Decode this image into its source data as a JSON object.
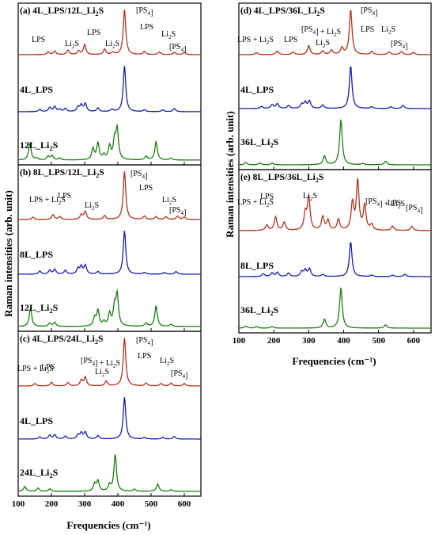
{
  "y_axis_label": "Raman intensities (arb. unit)",
  "x_axis_label": "Frequencies (cm⁻¹)",
  "colors": {
    "combined": "#b5321e",
    "lps": "#1a1ab4",
    "li2s": "#1b7d12"
  },
  "chart_data": [
    {
      "type": "line",
      "panel": "(a)",
      "title": "4L_LPS/12L_Li2S",
      "xlim": [
        100,
        650
      ],
      "xticks": [],
      "traces": [
        {
          "name": "4L_LPS/12L_Li2S",
          "color": "#b5321e",
          "peaks": [
            [
              190,
              0.06
            ],
            [
              210,
              0.08
            ],
            [
              250,
              0.1
            ],
            [
              282,
              0.08
            ],
            [
              300,
              0.22
            ],
            [
              360,
              0.12
            ],
            [
              385,
              0.05
            ],
            [
              420,
              1.0
            ],
            [
              480,
              0.07
            ],
            [
              525,
              0.06
            ],
            [
              570,
              0.05
            ],
            [
              600,
              0.05
            ]
          ]
        },
        {
          "name": "4L_LPS",
          "color": "#1a1ab4",
          "peaks": [
            [
              165,
              0.05
            ],
            [
              195,
              0.09
            ],
            [
              210,
              0.11
            ],
            [
              225,
              0.05
            ],
            [
              242,
              0.07
            ],
            [
              280,
              0.1
            ],
            [
              290,
              0.14
            ],
            [
              302,
              0.17
            ],
            [
              340,
              0.08
            ],
            [
              382,
              0.05
            ],
            [
              420,
              1.0
            ],
            [
              480,
              0.04
            ],
            [
              535,
              0.04
            ],
            [
              570,
              0.07
            ]
          ]
        },
        {
          "name": "12L_Li2S",
          "color": "#1b7d12",
          "peaks": [
            [
              135,
              0.45
            ],
            [
              155,
              0.05
            ],
            [
              190,
              0.1
            ],
            [
              202,
              0.12
            ],
            [
              225,
              0.05
            ],
            [
              325,
              0.3
            ],
            [
              340,
              0.45
            ],
            [
              358,
              0.12
            ],
            [
              375,
              0.35
            ],
            [
              390,
              0.5
            ],
            [
              398,
              0.8
            ],
            [
              485,
              0.1
            ],
            [
              515,
              0.5
            ],
            [
              560,
              0.05
            ]
          ]
        }
      ],
      "annotations": [
        "LPS",
        "Li2S",
        "LPS",
        "Li2S",
        "LPS",
        "Li2S",
        "[PS4]",
        "[PS4]"
      ]
    },
    {
      "type": "line",
      "panel": "(b)",
      "title": "8L_LPS/12L_Li2S",
      "xlim": [
        100,
        650
      ],
      "xticks": [],
      "traces": [
        {
          "name": "8L_LPS/12L_Li2S",
          "color": "#b5321e",
          "peaks": [
            [
              145,
              0.05
            ],
            [
              205,
              0.1
            ],
            [
              225,
              0.06
            ],
            [
              290,
              0.1
            ],
            [
              302,
              0.16
            ],
            [
              360,
              0.08
            ],
            [
              420,
              1.0
            ],
            [
              480,
              0.07
            ],
            [
              515,
              0.06
            ],
            [
              545,
              0.06
            ],
            [
              580,
              0.07
            ],
            [
              600,
              0.05
            ]
          ]
        },
        {
          "name": "8L_LPS",
          "color": "#1a1ab4",
          "peaks": [
            [
              165,
              0.07
            ],
            [
              195,
              0.09
            ],
            [
              210,
              0.11
            ],
            [
              242,
              0.09
            ],
            [
              280,
              0.13
            ],
            [
              290,
              0.17
            ],
            [
              302,
              0.2
            ],
            [
              340,
              0.06
            ],
            [
              420,
              1.0
            ],
            [
              480,
              0.04
            ],
            [
              540,
              0.04
            ],
            [
              575,
              0.06
            ]
          ]
        },
        {
          "name": "12L_Li2S",
          "color": "#1b7d12",
          "peaks": [
            [
              137,
              0.45
            ],
            [
              195,
              0.08
            ],
            [
              210,
              0.1
            ],
            [
              330,
              0.2
            ],
            [
              340,
              0.38
            ],
            [
              358,
              0.1
            ],
            [
              375,
              0.3
            ],
            [
              390,
              0.45
            ],
            [
              398,
              0.75
            ],
            [
              485,
              0.08
            ],
            [
              515,
              0.5
            ],
            [
              560,
              0.05
            ]
          ]
        }
      ],
      "annotations": [
        "LPS + Li2S",
        "LPS",
        "Li2S",
        "LPS",
        "Li2S",
        "[PS4]",
        "[PS4]"
      ]
    },
    {
      "type": "line",
      "panel": "(c)",
      "title": "4L_LPS/24L_Li2S",
      "xlim": [
        100,
        650
      ],
      "xticks": [
        100,
        200,
        300,
        400,
        500,
        600
      ],
      "traces": [
        {
          "name": "4L_LPS/24L_Li2S",
          "color": "#b5321e",
          "peaks": [
            [
              150,
              0.05
            ],
            [
              200,
              0.08
            ],
            [
              250,
              0.07
            ],
            [
              290,
              0.12
            ],
            [
              302,
              0.18
            ],
            [
              365,
              0.1
            ],
            [
              420,
              1.0
            ],
            [
              485,
              0.06
            ],
            [
              530,
              0.05
            ],
            [
              560,
              0.06
            ],
            [
              600,
              0.05
            ]
          ]
        },
        {
          "name": "4L_LPS",
          "color": "#1a1ab4",
          "peaks": [
            [
              165,
              0.05
            ],
            [
              195,
              0.09
            ],
            [
              210,
              0.1
            ],
            [
              242,
              0.07
            ],
            [
              280,
              0.1
            ],
            [
              290,
              0.14
            ],
            [
              302,
              0.16
            ],
            [
              340,
              0.08
            ],
            [
              420,
              1.0
            ],
            [
              480,
              0.04
            ],
            [
              535,
              0.04
            ],
            [
              570,
              0.06
            ]
          ]
        },
        {
          "name": "24L_Li2S",
          "color": "#1b7d12",
          "peaks": [
            [
              120,
              0.12
            ],
            [
              160,
              0.08
            ],
            [
              195,
              0.06
            ],
            [
              330,
              0.18
            ],
            [
              340,
              0.25
            ],
            [
              375,
              0.15
            ],
            [
              392,
              0.9
            ],
            [
              450,
              0.05
            ],
            [
              520,
              0.18
            ],
            [
              560,
              0.04
            ]
          ]
        }
      ],
      "annotations": [
        "LPS + Li2S",
        "LPS",
        "[PS4] + Li2S",
        "Li2S",
        "LPS",
        "Li2S",
        "[PS4]",
        "[PS4]"
      ]
    },
    {
      "type": "line",
      "panel": "(d)",
      "title": "4L_LPS/36L_Li2S",
      "xlim": [
        100,
        650
      ],
      "xticks": [],
      "traces": [
        {
          "name": "4L_LPS/36L_Li2S",
          "color": "#b5321e",
          "peaks": [
            [
              150,
              0.04
            ],
            [
              210,
              0.08
            ],
            [
              255,
              0.06
            ],
            [
              300,
              0.2
            ],
            [
              340,
              0.08
            ],
            [
              365,
              0.1
            ],
            [
              395,
              0.15
            ],
            [
              420,
              1.0
            ],
            [
              480,
              0.07
            ],
            [
              530,
              0.06
            ],
            [
              565,
              0.07
            ],
            [
              600,
              0.05
            ]
          ]
        },
        {
          "name": "4L_LPS",
          "color": "#1a1ab4",
          "peaks": [
            [
              165,
              0.05
            ],
            [
              195,
              0.09
            ],
            [
              210,
              0.11
            ],
            [
              242,
              0.07
            ],
            [
              280,
              0.1
            ],
            [
              290,
              0.14
            ],
            [
              302,
              0.17
            ],
            [
              340,
              0.08
            ],
            [
              420,
              1.0
            ],
            [
              480,
              0.04
            ],
            [
              535,
              0.04
            ],
            [
              570,
              0.07
            ]
          ]
        },
        {
          "name": "36L_Li2S",
          "color": "#1b7d12",
          "peaks": [
            [
              120,
              0.05
            ],
            [
              160,
              0.04
            ],
            [
              195,
              0.04
            ],
            [
              345,
              0.2
            ],
            [
              392,
              1.0
            ],
            [
              455,
              0.03
            ],
            [
              520,
              0.08
            ]
          ]
        }
      ],
      "annotations": [
        "LPS + Li2S",
        "LPS",
        "[PS4] + Li2S",
        "Li2S",
        "LPS",
        "Li2S",
        "[PS4]",
        "[PS4]"
      ]
    },
    {
      "type": "line",
      "panel": "(e)",
      "title": "8L_LPS/36L_Li2S",
      "xlim": [
        100,
        650
      ],
      "xticks": [
        100,
        200,
        300,
        400,
        500,
        600
      ],
      "traces": [
        {
          "name": "8L_LPS/36L_Li2S",
          "color": "#b5321e",
          "peaks": [
            [
              180,
              0.1
            ],
            [
              205,
              0.25
            ],
            [
              230,
              0.15
            ],
            [
              290,
              0.3
            ],
            [
              300,
              0.6
            ],
            [
              340,
              0.25
            ],
            [
              355,
              0.18
            ],
            [
              385,
              0.2
            ],
            [
              425,
              0.5
            ],
            [
              440,
              0.9
            ],
            [
              460,
              0.45
            ],
            [
              480,
              0.1
            ],
            [
              540,
              0.08
            ],
            [
              595,
              0.08
            ]
          ]
        },
        {
          "name": "8L_LPS",
          "color": "#1a1ab4",
          "peaks": [
            [
              170,
              0.08
            ],
            [
              195,
              0.1
            ],
            [
              210,
              0.12
            ],
            [
              242,
              0.1
            ],
            [
              280,
              0.14
            ],
            [
              290,
              0.18
            ],
            [
              302,
              0.22
            ],
            [
              340,
              0.06
            ],
            [
              420,
              1.0
            ],
            [
              480,
              0.04
            ],
            [
              540,
              0.04
            ],
            [
              575,
              0.07
            ]
          ]
        },
        {
          "name": "36L_Li2S",
          "color": "#1b7d12",
          "peaks": [
            [
              120,
              0.05
            ],
            [
              150,
              0.04
            ],
            [
              195,
              0.04
            ],
            [
              345,
              0.22
            ],
            [
              392,
              1.0
            ],
            [
              520,
              0.08
            ]
          ]
        }
      ],
      "annotations": [
        "LPS + Li2S",
        "LPS",
        "Li2S",
        "[PS4] + Li2S",
        "LPS",
        "[PS4]"
      ]
    }
  ]
}
